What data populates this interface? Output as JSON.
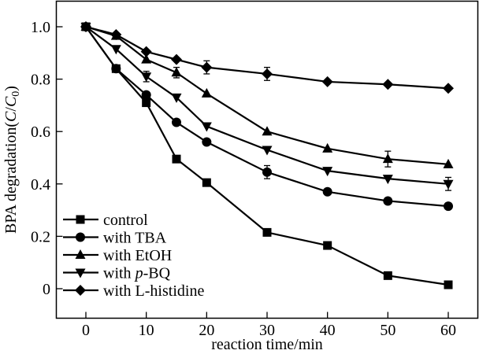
{
  "chart_data": {
    "type": "line",
    "title": "",
    "xlabel": "reaction time/min",
    "ylabel_prefix": "BPA degradation(",
    "ylabel_italic_c": "C",
    "ylabel_slash": "/",
    "ylabel_italic_c0": "C",
    "ylabel_sub0": "0",
    "ylabel_suffix": ")",
    "xlim": [
      -5,
      65
    ],
    "ylim": [
      -0.1,
      1.1
    ],
    "xticks": [
      0,
      10,
      20,
      30,
      40,
      50,
      60
    ],
    "xtick_labels": [
      "0",
      "10",
      "20",
      "30",
      "40",
      "50",
      "60"
    ],
    "yticks": [
      0,
      0.2,
      0.4,
      0.6,
      0.8,
      1.0
    ],
    "ytick_labels": [
      "0",
      "0.2",
      "0.4",
      "0.6",
      "0.8",
      "1.0"
    ],
    "grid": false,
    "legend_position": "bottom-left",
    "x": [
      0,
      5,
      10,
      15,
      20,
      30,
      40,
      50,
      60
    ],
    "series": [
      {
        "name": "control",
        "marker": "square",
        "values": [
          1.0,
          0.84,
          0.71,
          0.495,
          0.405,
          0.215,
          0.165,
          0.05,
          0.015
        ]
      },
      {
        "name": "with TBA",
        "marker": "circle",
        "values": [
          1.0,
          0.84,
          0.74,
          0.635,
          0.56,
          0.445,
          0.37,
          0.335,
          0.315
        ],
        "errors": [
          0,
          0,
          0,
          0,
          0,
          0.025,
          0,
          0,
          0
        ]
      },
      {
        "name": "with EtOH",
        "marker": "triangle-up",
        "values": [
          1.0,
          0.965,
          0.875,
          0.825,
          0.745,
          0.6,
          0.535,
          0.495,
          0.475
        ],
        "errors": [
          0,
          0,
          0,
          0.02,
          0,
          0,
          0,
          0.03,
          0
        ]
      },
      {
        "name": "with p-BQ",
        "name_prefix": "with ",
        "name_italic": "p",
        "name_suffix": "-BQ",
        "marker": "triangle-down",
        "values": [
          1.0,
          0.915,
          0.81,
          0.73,
          0.62,
          0.53,
          0.45,
          0.42,
          0.4
        ],
        "errors": [
          0,
          0,
          0.02,
          0,
          0,
          0,
          0,
          0,
          0.025
        ]
      },
      {
        "name": "with L-histidine",
        "marker": "diamond",
        "values": [
          1.0,
          0.97,
          0.905,
          0.875,
          0.845,
          0.82,
          0.79,
          0.78,
          0.765
        ],
        "errors": [
          0,
          0,
          0,
          0,
          0.025,
          0.025,
          0,
          0,
          0
        ]
      }
    ]
  }
}
